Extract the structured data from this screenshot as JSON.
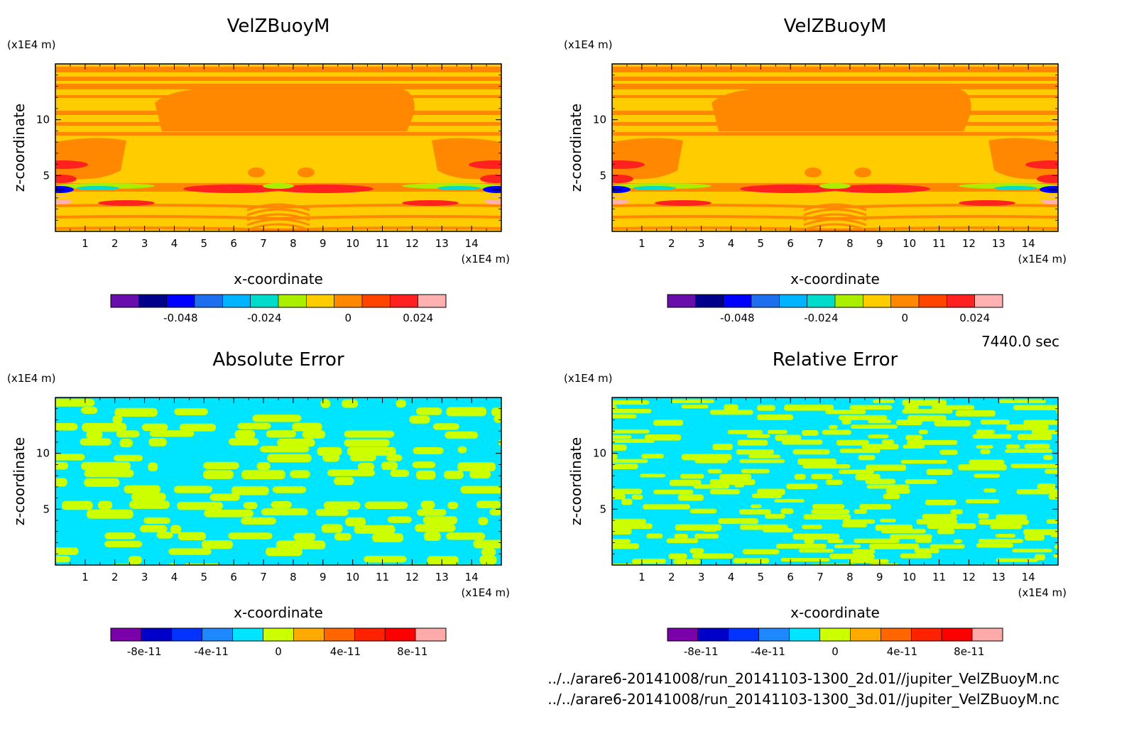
{
  "time_label": "7440.0 sec",
  "files": [
    "../../arare6-20141008/run_20141103-1300_2d.01//jupiter_VelZBuoyM.nc",
    "../../arare6-20141008/run_20141103-1300_3d.01//jupiter_VelZBuoyM.nc"
  ],
  "colors": {
    "velz_palette": [
      "#6a0dad",
      "#00008b",
      "#0000ff",
      "#1e6ff0",
      "#00b4ff",
      "#00dccc",
      "#aaee00",
      "#ffcc00",
      "#ff8800",
      "#ff4400",
      "#ff2020",
      "#ffb0b0"
    ],
    "err_palette": [
      "#7a00aa",
      "#0000c8",
      "#0033ff",
      "#1e88ff",
      "#00e5ff",
      "#ccff00",
      "#ffaa00",
      "#ff6600",
      "#ff2200",
      "#ff0000",
      "#ffaaaa"
    ]
  },
  "chart_data": [
    {
      "type": "heatmap",
      "title": "VelZBuoyM",
      "xlabel": "x-coordinate",
      "ylabel": "z-coordinate",
      "x_unit": "(x1E4 m)",
      "y_unit": "(x1E4 m)",
      "xlim": [
        0,
        15
      ],
      "ylim": [
        0,
        15
      ],
      "x_ticks": [
        "1",
        "2",
        "3",
        "4",
        "5",
        "6",
        "7",
        "8",
        "9",
        "10",
        "11",
        "12",
        "13",
        "14"
      ],
      "y_ticks": [
        "5",
        "10"
      ],
      "colorbar_ticks": [
        "-0.048",
        "-0.024",
        "0",
        "0.024"
      ]
    },
    {
      "type": "heatmap",
      "title": "VelZBuoyM",
      "xlabel": "x-coordinate",
      "ylabel": "z-coordinate",
      "x_unit": "(x1E4 m)",
      "y_unit": "(x1E4 m)",
      "xlim": [
        0,
        15
      ],
      "ylim": [
        0,
        15
      ],
      "x_ticks": [
        "1",
        "2",
        "3",
        "4",
        "5",
        "6",
        "7",
        "8",
        "9",
        "10",
        "11",
        "12",
        "13",
        "14"
      ],
      "y_ticks": [
        "5",
        "10"
      ],
      "colorbar_ticks": [
        "-0.048",
        "-0.024",
        "0",
        "0.024"
      ]
    },
    {
      "type": "heatmap",
      "title": "Absolute Error",
      "xlabel": "x-coordinate",
      "ylabel": "z-coordinate",
      "x_unit": "(x1E4 m)",
      "y_unit": "(x1E4 m)",
      "xlim": [
        0,
        15
      ],
      "ylim": [
        0,
        15
      ],
      "x_ticks": [
        "1",
        "2",
        "3",
        "4",
        "5",
        "6",
        "7",
        "8",
        "9",
        "10",
        "11",
        "12",
        "13",
        "14"
      ],
      "y_ticks": [
        "5",
        "10"
      ],
      "colorbar_ticks": [
        "-8e-11",
        "-4e-11",
        "0",
        "4e-11",
        "8e-11"
      ]
    },
    {
      "type": "heatmap",
      "title": "Relative Error",
      "xlabel": "x-coordinate",
      "ylabel": "z-coordinate",
      "x_unit": "(x1E4 m)",
      "y_unit": "(x1E4 m)",
      "xlim": [
        0,
        15
      ],
      "ylim": [
        0,
        15
      ],
      "x_ticks": [
        "1",
        "2",
        "3",
        "4",
        "5",
        "6",
        "7",
        "8",
        "9",
        "10",
        "11",
        "12",
        "13",
        "14"
      ],
      "y_ticks": [
        "5",
        "10"
      ],
      "colorbar_ticks": [
        "-8e-11",
        "-4e-11",
        "0",
        "4e-11",
        "8e-11"
      ]
    }
  ]
}
